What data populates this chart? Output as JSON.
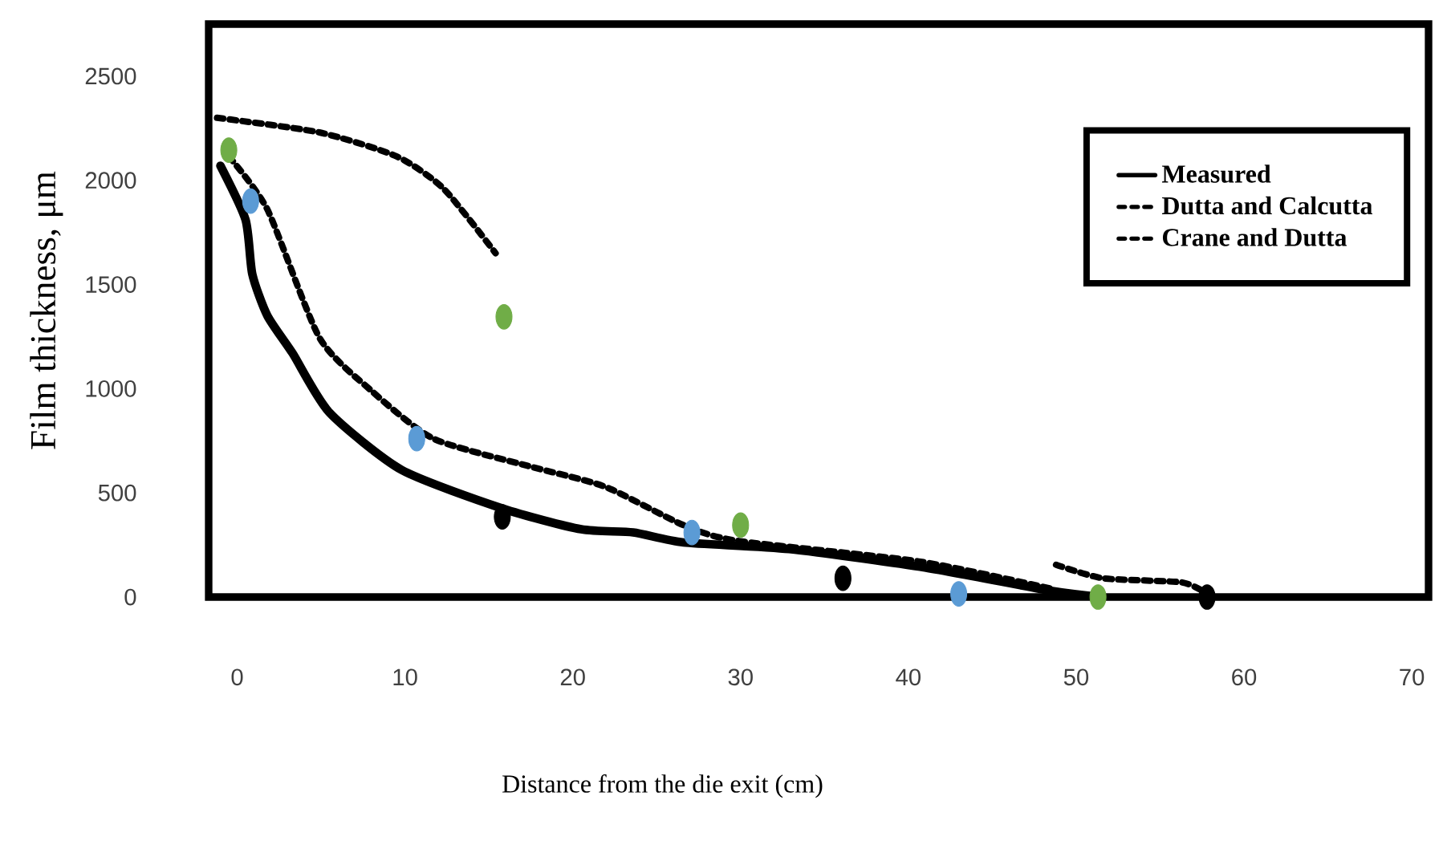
{
  "chart_data": {
    "type": "line",
    "xlabel": "Distance from the die exit (cm)",
    "ylabel": "Film thickness,  μm",
    "xlim": [
      -1.7,
      71
    ],
    "ylim": [
      0,
      2750
    ],
    "xticks": [
      0,
      10,
      20,
      30,
      40,
      50,
      60,
      70
    ],
    "yticks": [
      0,
      500,
      1000,
      1500,
      2000,
      2500
    ],
    "grid": false,
    "legend": "top right",
    "series": [
      {
        "name": "Measured",
        "color": "#000000",
        "line_style": "solid",
        "marker": "none",
        "x": [
          -1,
          0.5,
          0.9,
          1.8,
          3.3,
          5.5,
          9.8,
          15.8,
          20.5,
          23.6,
          26.6,
          32.9,
          40.7,
          48.5,
          51.6
        ],
        "values": [
          2070,
          1810,
          1550,
          1350,
          1170,
          885,
          610,
          425,
          325,
          310,
          262,
          230,
          145,
          30,
          0
        ]
      },
      {
        "name": "Dutta and Calcutta",
        "color": "#000000",
        "line_style": "dashed",
        "marker": "none",
        "x": [
          -0.5,
          1.8,
          4.9,
          8,
          11.7,
          17.3,
          21.9,
          26.6,
          29.8,
          40.7,
          48.5
        ],
        "values": [
          2115,
          1860,
          1245,
          990,
          760,
          630,
          530,
          345,
          270,
          170,
          40
        ]
      },
      {
        "name": "Crane and Dutta",
        "color": "#000000",
        "line_style": "dashed",
        "marker": "none",
        "x": [
          -1.2,
          4.9,
          9.5,
          12.3,
          15.4,
          30,
          48.8,
          51.6,
          56.3,
          57.8
        ],
        "values": [
          2300,
          2230,
          2115,
          1960,
          1650,
          null,
          155,
          90,
          70,
          15
        ]
      },
      {
        "type": "scatter",
        "color": "#70ad47",
        "marker": "circle",
        "x": [
          -0.5,
          15.9,
          30,
          51.3
        ],
        "values": [
          2145,
          1345,
          345,
          0
        ]
      },
      {
        "type": "scatter",
        "color": "#5b9bd5",
        "marker": "circle",
        "x": [
          0.8,
          10.7,
          27.1,
          43
        ],
        "values": [
          1900,
          760,
          310,
          15
        ]
      },
      {
        "type": "scatter",
        "color": "#000000",
        "marker": "circle",
        "x": [
          15.8,
          36.1,
          57.8
        ],
        "values": [
          385,
          90,
          0
        ]
      }
    ]
  }
}
